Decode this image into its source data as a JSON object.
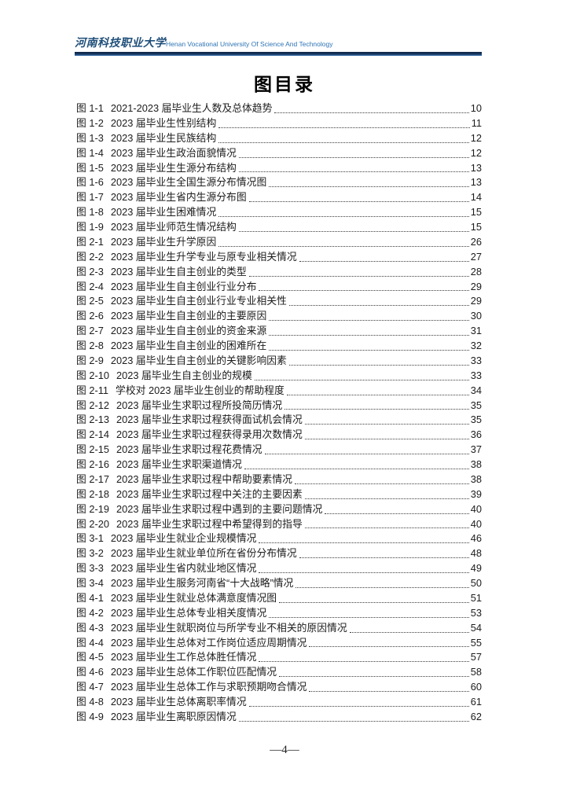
{
  "header": {
    "logo_cn": "河南科技职业大学",
    "logo_en": "Henan Vocational University Of Science And Technology"
  },
  "title": "图目录",
  "toc": {
    "entries": [
      {
        "label": "图 1-1",
        "title": "2021-2023 届毕业生人数及总体趋势",
        "page": "10"
      },
      {
        "label": "图 1-2",
        "title": "2023 届毕业生性别结构",
        "page": "11"
      },
      {
        "label": "图 1-3",
        "title": "2023 届毕业生民族结构",
        "page": "12"
      },
      {
        "label": "图 1-4",
        "title": "2023 届毕业生政治面貌情况",
        "page": "12"
      },
      {
        "label": "图 1-5",
        "title": "2023 届毕业生生源分布结构",
        "page": "13"
      },
      {
        "label": "图 1-6",
        "title": "2023 届毕业生全国生源分布情况图",
        "page": "13"
      },
      {
        "label": "图 1-7",
        "title": "2023 届毕业生省内生源分布图",
        "page": "14"
      },
      {
        "label": "图 1-8",
        "title": "2023 届毕业生困难情况",
        "page": "15"
      },
      {
        "label": "图 1-9",
        "title": "2023 届毕业师范生情况结构",
        "page": "15"
      },
      {
        "label": "图 2-1",
        "title": "2023 届毕业生升学原因",
        "page": "26"
      },
      {
        "label": "图 2-2",
        "title": "2023 届毕业生升学专业与原专业相关情况",
        "page": "27"
      },
      {
        "label": "图 2-3",
        "title": "2023 届毕业生自主创业的类型",
        "page": "28"
      },
      {
        "label": "图 2-4",
        "title": "2023 届毕业生自主创业行业分布",
        "page": "29"
      },
      {
        "label": "图 2-5",
        "title": "2023 届毕业生自主创业行业专业相关性",
        "page": "29"
      },
      {
        "label": "图 2-6",
        "title": "2023 届毕业生自主创业的主要原因",
        "page": "30"
      },
      {
        "label": "图 2-7",
        "title": "2023 届毕业生自主创业的资金来源",
        "page": "31"
      },
      {
        "label": "图 2-8",
        "title": "2023 届毕业生自主创业的困难所在",
        "page": "32"
      },
      {
        "label": "图 2-9",
        "title": "2023 届毕业生自主创业的关键影响因素",
        "page": "33"
      },
      {
        "label": "图 2-10",
        "title": "2023 届毕业生自主创业的规模",
        "page": "33"
      },
      {
        "label": "图 2-11",
        "title": "学校对 2023 届毕业生创业的帮助程度",
        "page": "34"
      },
      {
        "label": "图 2-12",
        "title": "2023 届毕业生求职过程所投简历情况",
        "page": "35"
      },
      {
        "label": "图 2-13",
        "title": "2023 届毕业生求职过程获得面试机会情况",
        "page": "35"
      },
      {
        "label": "图 2-14",
        "title": "2023 届毕业生求职过程获得录用次数情况",
        "page": "36"
      },
      {
        "label": "图 2-15",
        "title": "2023 届毕业生求职过程花费情况",
        "page": "37"
      },
      {
        "label": "图 2-16",
        "title": "2023 届毕业生求职渠道情况",
        "page": "38"
      },
      {
        "label": "图 2-17",
        "title": "2023 届毕业生求职过程中帮助要素情况",
        "page": "38"
      },
      {
        "label": "图 2-18",
        "title": "2023 届毕业生求职过程中关注的主要因素",
        "page": "39"
      },
      {
        "label": "图 2-19",
        "title": "2023 届毕业生求职过程中遇到的主要问题情况",
        "page": "40"
      },
      {
        "label": "图 2-20",
        "title": "2023 届毕业生求职过程中希望得到的指导",
        "page": "40"
      },
      {
        "label": "图 3-1",
        "title": "2023 届毕业生就业企业规模情况",
        "page": "46"
      },
      {
        "label": "图 3-2",
        "title": "2023 届毕业生就业单位所在省份分布情况",
        "page": "48"
      },
      {
        "label": "图 3-3",
        "title": "2023 届毕业生省内就业地区情况",
        "page": "49"
      },
      {
        "label": "图 3-4",
        "title": "2023 届毕业生服务河南省“十大战略”情况",
        "page": "50"
      },
      {
        "label": "图 4-1",
        "title": "2023 届毕业生就业总体满意度情况图",
        "page": "51"
      },
      {
        "label": "图 4-2",
        "title": "2023 届毕业生总体专业相关度情况",
        "page": "53"
      },
      {
        "label": "图 4-3",
        "title": "2023 届毕业生就职岗位与所学专业不相关的原因情况",
        "page": "54"
      },
      {
        "label": "图 4-4",
        "title": "2023 届毕业生总体对工作岗位适应周期情况",
        "page": "55"
      },
      {
        "label": "图 4-5",
        "title": "2023 届毕业生工作总体胜任情况",
        "page": "57"
      },
      {
        "label": "图 4-6",
        "title": "2023 届毕业生总体工作职位匹配情况",
        "page": "58"
      },
      {
        "label": "图 4-7",
        "title": "2023 届毕业生总体工作与求职预期吻合情况",
        "page": "60"
      },
      {
        "label": "图 4-8",
        "title": "2023 届毕业生总体离职率情况",
        "page": "61"
      },
      {
        "label": "图 4-9",
        "title": "2023 届毕业生离职原因情况",
        "page": "62"
      }
    ]
  },
  "footer": {
    "page_number": "—4—"
  },
  "colors": {
    "logo_blue_dark": "#1f4e79",
    "logo_blue_light": "#2e74b5",
    "rule_blue_top": "#0e2547",
    "rule_blue_bottom": "#3f79b8",
    "body_text": "#1c1c1c"
  }
}
